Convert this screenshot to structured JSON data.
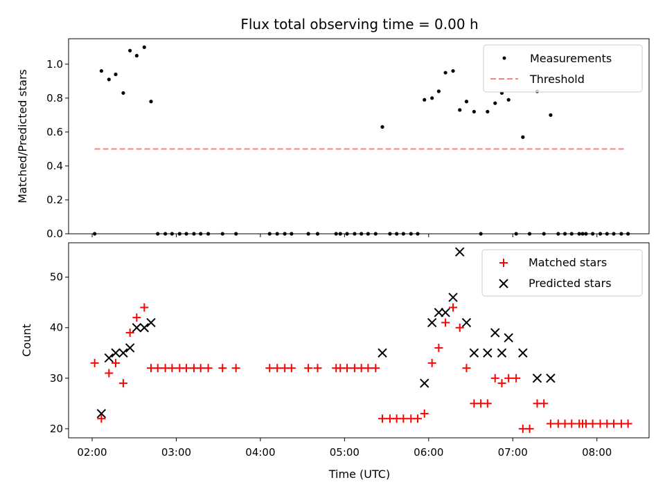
{
  "chart_data": {
    "type": "scatter",
    "title": "Flux total observing time = 0.00 h",
    "shared_x": {
      "label": "Time (UTC)",
      "range_hours": [
        1.72,
        8.62
      ],
      "ticks": [
        {
          "value": 2,
          "label": "02:00"
        },
        {
          "value": 3,
          "label": "03:00"
        },
        {
          "value": 4,
          "label": "04:00"
        },
        {
          "value": 5,
          "label": "05:00"
        },
        {
          "value": 6,
          "label": "06:00"
        },
        {
          "value": 7,
          "label": "07:00"
        },
        {
          "value": 8,
          "label": "08:00"
        }
      ]
    },
    "top": {
      "ylabel": "Matched/Predicted stars",
      "ylim": [
        0,
        1.15
      ],
      "yticks": [
        {
          "value": 0,
          "label": "0.0"
        },
        {
          "value": 0.2,
          "label": "0.2"
        },
        {
          "value": 0.4,
          "label": "0.4"
        },
        {
          "value": 0.6,
          "label": "0.6"
        },
        {
          "value": 0.8,
          "label": "0.8"
        },
        {
          "value": 1.0,
          "label": "1.0"
        }
      ],
      "legend": {
        "position": "top-right",
        "measurements": "Measurements",
        "threshold": "Threshold"
      },
      "threshold": {
        "value": 0.5,
        "x_start": 2.03,
        "x_end": 8.34,
        "color": "#ff7f7f"
      },
      "measurements": [
        [
          2.03,
          0.0
        ],
        [
          2.11,
          0.96
        ],
        [
          2.2,
          0.91
        ],
        [
          2.28,
          0.94
        ],
        [
          2.37,
          0.83
        ],
        [
          2.45,
          1.08
        ],
        [
          2.53,
          1.05
        ],
        [
          2.62,
          1.1
        ],
        [
          2.7,
          0.78
        ],
        [
          2.78,
          0.0
        ],
        [
          2.87,
          0.0
        ],
        [
          2.95,
          0.0
        ],
        [
          3.04,
          0.0
        ],
        [
          3.12,
          0.0
        ],
        [
          3.21,
          0.0
        ],
        [
          3.29,
          0.0
        ],
        [
          3.38,
          0.0
        ],
        [
          3.55,
          0.0
        ],
        [
          3.71,
          0.0
        ],
        [
          4.11,
          0.0
        ],
        [
          4.2,
          0.0
        ],
        [
          4.29,
          0.0
        ],
        [
          4.37,
          0.0
        ],
        [
          4.57,
          0.0
        ],
        [
          4.68,
          0.0
        ],
        [
          4.9,
          0.0
        ],
        [
          4.95,
          0.0
        ],
        [
          5.03,
          0.0
        ],
        [
          5.12,
          0.0
        ],
        [
          5.2,
          0.0
        ],
        [
          5.28,
          0.0
        ],
        [
          5.37,
          0.0
        ],
        [
          5.45,
          0.63
        ],
        [
          5.54,
          0.0
        ],
        [
          5.62,
          0.0
        ],
        [
          5.7,
          0.0
        ],
        [
          5.79,
          0.0
        ],
        [
          5.87,
          0.0
        ],
        [
          5.95,
          0.79
        ],
        [
          6.04,
          0.8
        ],
        [
          6.12,
          0.84
        ],
        [
          6.2,
          0.95
        ],
        [
          6.29,
          0.96
        ],
        [
          6.37,
          0.73
        ],
        [
          6.45,
          0.78
        ],
        [
          6.54,
          0.72
        ],
        [
          6.62,
          0.0
        ],
        [
          6.7,
          0.72
        ],
        [
          6.79,
          0.77
        ],
        [
          6.87,
          0.83
        ],
        [
          6.95,
          0.79
        ],
        [
          7.04,
          0.0
        ],
        [
          7.12,
          0.57
        ],
        [
          7.2,
          0.0
        ],
        [
          7.29,
          0.84
        ],
        [
          7.37,
          0.0
        ],
        [
          7.45,
          0.7
        ],
        [
          7.54,
          0.0
        ],
        [
          7.62,
          0.0
        ],
        [
          7.7,
          0.0
        ],
        [
          7.79,
          0.0
        ],
        [
          7.83,
          0.0
        ],
        [
          7.87,
          0.0
        ],
        [
          7.95,
          0.0
        ],
        [
          8.04,
          0.0
        ],
        [
          8.12,
          0.0
        ],
        [
          8.2,
          0.0
        ],
        [
          8.29,
          0.0
        ],
        [
          8.37,
          0.0
        ]
      ]
    },
    "bottom": {
      "ylabel": "Count",
      "ylim": [
        18.2,
        56.8
      ],
      "yticks": [
        {
          "value": 20,
          "label": "20"
        },
        {
          "value": 30,
          "label": "30"
        },
        {
          "value": 40,
          "label": "40"
        },
        {
          "value": 50,
          "label": "50"
        }
      ],
      "legend": {
        "position": "top-right",
        "matched": "Matched stars",
        "predicted": "Predicted stars"
      },
      "matched_color": "#ff0000",
      "predicted_color": "#000000",
      "matched": [
        [
          2.03,
          33
        ],
        [
          2.11,
          22
        ],
        [
          2.2,
          31
        ],
        [
          2.28,
          33
        ],
        [
          2.37,
          29
        ],
        [
          2.45,
          39
        ],
        [
          2.53,
          42
        ],
        [
          2.62,
          44
        ],
        [
          2.7,
          32
        ],
        [
          2.78,
          32
        ],
        [
          2.87,
          32
        ],
        [
          2.95,
          32
        ],
        [
          3.04,
          32
        ],
        [
          3.12,
          32
        ],
        [
          3.21,
          32
        ],
        [
          3.29,
          32
        ],
        [
          3.38,
          32
        ],
        [
          3.55,
          32
        ],
        [
          3.71,
          32
        ],
        [
          4.11,
          32
        ],
        [
          4.2,
          32
        ],
        [
          4.29,
          32
        ],
        [
          4.37,
          32
        ],
        [
          4.57,
          32
        ],
        [
          4.68,
          32
        ],
        [
          4.9,
          32
        ],
        [
          4.95,
          32
        ],
        [
          5.03,
          32
        ],
        [
          5.12,
          32
        ],
        [
          5.2,
          32
        ],
        [
          5.28,
          32
        ],
        [
          5.37,
          32
        ],
        [
          5.45,
          22
        ],
        [
          5.54,
          22
        ],
        [
          5.62,
          22
        ],
        [
          5.7,
          22
        ],
        [
          5.79,
          22
        ],
        [
          5.87,
          22
        ],
        [
          5.95,
          23
        ],
        [
          6.04,
          33
        ],
        [
          6.12,
          36
        ],
        [
          6.2,
          41
        ],
        [
          6.29,
          44
        ],
        [
          6.37,
          40
        ],
        [
          6.45,
          32
        ],
        [
          6.54,
          25
        ],
        [
          6.62,
          25
        ],
        [
          6.7,
          25
        ],
        [
          6.79,
          30
        ],
        [
          6.87,
          29
        ],
        [
          6.95,
          30
        ],
        [
          7.04,
          30
        ],
        [
          7.12,
          20
        ],
        [
          7.2,
          20
        ],
        [
          7.29,
          25
        ],
        [
          7.37,
          25
        ],
        [
          7.45,
          21
        ],
        [
          7.54,
          21
        ],
        [
          7.62,
          21
        ],
        [
          7.7,
          21
        ],
        [
          7.79,
          21
        ],
        [
          7.83,
          21
        ],
        [
          7.87,
          21
        ],
        [
          7.95,
          21
        ],
        [
          8.04,
          21
        ],
        [
          8.12,
          21
        ],
        [
          8.2,
          21
        ],
        [
          8.29,
          21
        ],
        [
          8.37,
          21
        ]
      ],
      "predicted": [
        [
          2.11,
          23
        ],
        [
          2.2,
          34
        ],
        [
          2.28,
          35
        ],
        [
          2.37,
          35
        ],
        [
          2.45,
          36
        ],
        [
          2.53,
          40
        ],
        [
          2.62,
          40
        ],
        [
          2.7,
          41
        ],
        [
          5.45,
          35
        ],
        [
          5.95,
          29
        ],
        [
          6.04,
          41
        ],
        [
          6.12,
          43
        ],
        [
          6.2,
          43
        ],
        [
          6.29,
          46
        ],
        [
          6.37,
          55
        ],
        [
          6.45,
          41
        ],
        [
          6.54,
          35
        ],
        [
          6.7,
          35
        ],
        [
          6.79,
          39
        ],
        [
          6.87,
          35
        ],
        [
          6.95,
          38
        ],
        [
          7.12,
          35
        ],
        [
          7.29,
          30
        ],
        [
          7.45,
          30
        ]
      ]
    }
  }
}
